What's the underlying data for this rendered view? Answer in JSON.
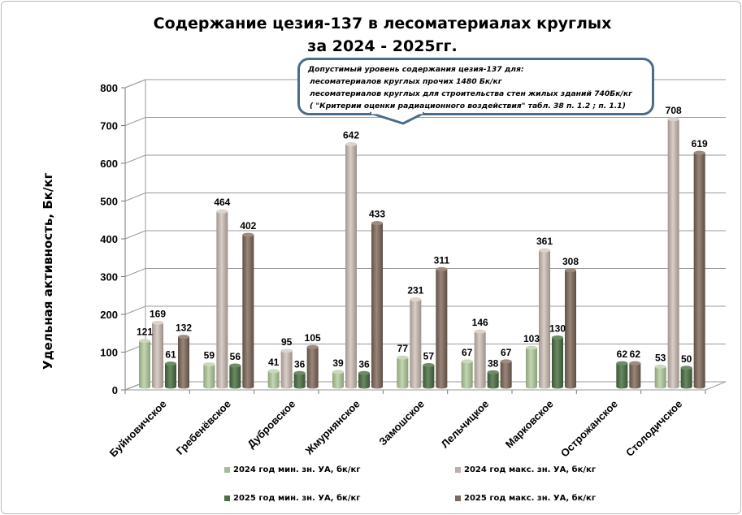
{
  "title_line1": "Содержание цезия-137 в лесоматериалах круглых",
  "title_line2": "за 2024 - 2025гг.",
  "callout": {
    "line1": "Допустимый уровень содержания цезия-137 для:",
    "line2": "лесоматериалов круглых прочих  1480 Бк/кг",
    "line3": "лесоматериалов круглых для строительства стен жилых зданий 740Бк/кг",
    "line4": "( \"Критерии оценки радиационного воздействия\" табл. 38 п. 1.2 ; п. 1.1)"
  },
  "colors": {
    "s2024min": "#a8bd96",
    "s2024max": "#bdb1ab",
    "s2025min": "#4f6c48",
    "s2025max": "#7b6a5d",
    "grid": "#9a9a9a",
    "callout_border": "#4a6b8a"
  },
  "chart_data": {
    "type": "bar",
    "title": "Содержание цезия-137 в лесоматериалах круглых за 2024 - 2025гг.",
    "xlabel": "",
    "ylabel": "Удельная активность, Бк/кг",
    "ylim": [
      0,
      800
    ],
    "yticks": [
      "0",
      "100",
      "200",
      "300",
      "400",
      "500",
      "600",
      "700",
      "800"
    ],
    "grid": true,
    "legend_position": "bottom",
    "categories": [
      "Буйновичское",
      "Гребенёвское",
      "Дубровское",
      "Жмурнянское",
      "Замошское",
      "Лельчицкое",
      "Марковское",
      "Острожанское",
      "Столодичское"
    ],
    "series": [
      {
        "name": "2024 год мин. зн. УА, бк/кг",
        "values": [
          121,
          59,
          41,
          39,
          77,
          67,
          103,
          null,
          53
        ]
      },
      {
        "name": "2024 год макс. зн. УА, бк/кг",
        "values": [
          169,
          464,
          95,
          642,
          231,
          146,
          361,
          null,
          708
        ]
      },
      {
        "name": "2025 год  мин. зн. УА, бк/кг",
        "values": [
          61,
          56,
          36,
          36,
          57,
          38,
          130,
          62,
          50
        ]
      },
      {
        "name": "2025 год  макс. зн. УА, бк/кг",
        "values": [
          132,
          402,
          105,
          433,
          311,
          67,
          308,
          62,
          619
        ]
      }
    ]
  }
}
